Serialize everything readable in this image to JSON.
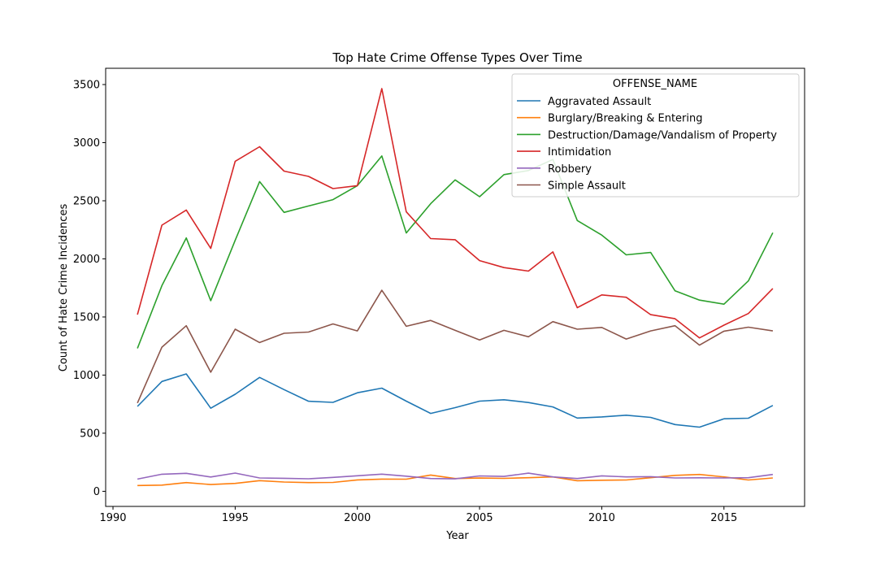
{
  "chart_data": {
    "type": "line",
    "title": "Top Hate Crime Offense Types Over Time",
    "xlabel": "Year",
    "ylabel": "Count of Hate Crime Incidences",
    "xlim": [
      1989.7,
      2018.3
    ],
    "ylim": [
      -130,
      3640
    ],
    "xticks": [
      1990,
      1995,
      2000,
      2005,
      2010,
      2015
    ],
    "yticks": [
      0,
      500,
      1000,
      1500,
      2000,
      2500,
      3000,
      3500
    ],
    "grid": false,
    "legend": {
      "title": "OFFENSE_NAME",
      "placement": "top-right"
    },
    "x": [
      1991,
      1992,
      1993,
      1994,
      1995,
      1996,
      1997,
      1998,
      1999,
      2000,
      2001,
      2002,
      2003,
      2004,
      2005,
      2006,
      2007,
      2008,
      2009,
      2010,
      2011,
      2012,
      2013,
      2014,
      2015,
      2016,
      2017
    ],
    "series": [
      {
        "name": "Aggravated Assault",
        "color": "#1f77b4",
        "values": [
          730,
          945,
          1010,
          715,
          835,
          980,
          875,
          775,
          765,
          848,
          888,
          776,
          670,
          720,
          776,
          788,
          764,
          726,
          630,
          640,
          655,
          636,
          574,
          552,
          624,
          629,
          739
        ]
      },
      {
        "name": "Burglary/Breaking & Entering",
        "color": "#ff7f0e",
        "values": [
          50,
          53,
          75,
          58,
          68,
          92,
          80,
          75,
          76,
          98,
          105,
          104,
          140,
          110,
          114,
          111,
          117,
          124,
          91,
          95,
          97,
          117,
          137,
          145,
          124,
          97,
          115
        ]
      },
      {
        "name": "Destruction/Damage/Vandalism of Property",
        "color": "#2ca02c",
        "values": [
          1230,
          1770,
          2180,
          1640,
          2160,
          2665,
          2400,
          2455,
          2510,
          2630,
          2885,
          2223,
          2475,
          2680,
          2535,
          2725,
          2760,
          2855,
          2330,
          2205,
          2035,
          2055,
          1725,
          1645,
          1610,
          1810,
          2225
        ]
      },
      {
        "name": "Intimidation",
        "color": "#d62728",
        "values": [
          1520,
          2290,
          2420,
          2090,
          2840,
          2965,
          2755,
          2710,
          2605,
          2630,
          3465,
          2405,
          2175,
          2165,
          1985,
          1925,
          1895,
          2060,
          1580,
          1690,
          1670,
          1520,
          1485,
          1320,
          1430,
          1530,
          1745
        ]
      },
      {
        "name": "Robbery",
        "color": "#9467bd",
        "values": [
          105,
          147,
          155,
          123,
          157,
          115,
          112,
          108,
          120,
          134,
          148,
          130,
          110,
          107,
          132,
          128,
          156,
          124,
          110,
          133,
          124,
          126,
          115,
          116,
          115,
          117,
          145
        ]
      },
      {
        "name": "Simple Assault",
        "color": "#8c564b",
        "values": [
          760,
          1240,
          1425,
          1025,
          1395,
          1280,
          1360,
          1370,
          1440,
          1380,
          1730,
          1420,
          1470,
          1385,
          1302,
          1385,
          1330,
          1460,
          1395,
          1410,
          1310,
          1380,
          1425,
          1258,
          1378,
          1412,
          1380
        ]
      }
    ]
  }
}
